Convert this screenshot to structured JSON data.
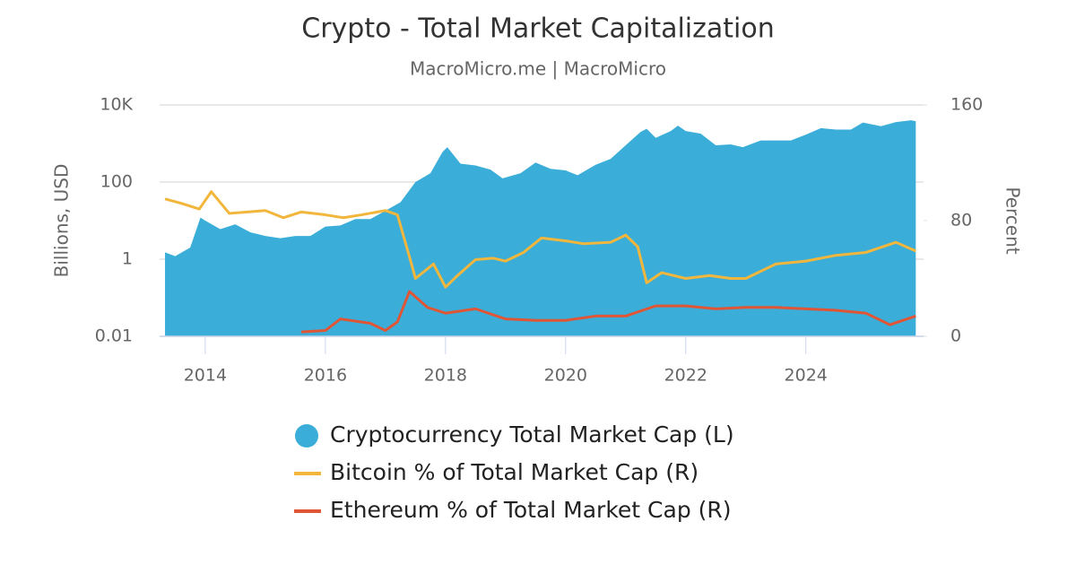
{
  "chart_data": {
    "type": "area-line",
    "title": "Crypto - Total Market Capitalization",
    "subtitle": "MacroMicro.me | MacroMicro",
    "y_label": "Billions, USD",
    "y2_label": "Percent",
    "xlim": [
      2013.24,
      2025.96
    ],
    "xticks": [
      2014,
      2016,
      2018,
      2020,
      2022,
      2024
    ],
    "ylim": [
      0.01,
      10000
    ],
    "y_log": true,
    "yticks": [
      0.01,
      1,
      100,
      {
        "value": 10000,
        "label": "10K"
      }
    ],
    "y2lim": [
      0,
      160
    ],
    "y2ticks": [
      0,
      80,
      160
    ],
    "grid": true,
    "series": [
      {
        "name": "Cryptocurrency Total Market Cap (L)",
        "color": "#3aaed8",
        "kind": "area",
        "x": [
          2013.33,
          2013.5,
          2013.75,
          2013.92,
          2014.0,
          2014.25,
          2014.5,
          2014.75,
          2015.0,
          2015.25,
          2015.5,
          2015.75,
          2016.0,
          2016.25,
          2016.5,
          2016.75,
          2017.0,
          2017.25,
          2017.5,
          2017.75,
          2017.95,
          2018.03,
          2018.25,
          2018.5,
          2018.75,
          2018.95,
          2019.25,
          2019.5,
          2019.75,
          2020.0,
          2020.2,
          2020.5,
          2020.75,
          2021.0,
          2021.25,
          2021.35,
          2021.5,
          2021.75,
          2021.87,
          2022.0,
          2022.25,
          2022.5,
          2022.75,
          2022.95,
          2023.25,
          2023.5,
          2023.75,
          2024.0,
          2024.25,
          2024.5,
          2024.75,
          2024.95,
          2025.25,
          2025.5,
          2025.75,
          2025.83
        ],
        "values": [
          1.5,
          1.2,
          2,
          12,
          10,
          6,
          8,
          5,
          4,
          3.5,
          4,
          4,
          7,
          7.5,
          11,
          11,
          18,
          30,
          100,
          170,
          600,
          800,
          300,
          270,
          210,
          125,
          170,
          320,
          220,
          200,
          150,
          280,
          400,
          900,
          2000,
          2400,
          1400,
          2100,
          2900,
          2100,
          1800,
          900,
          950,
          800,
          1200,
          1200,
          1200,
          1700,
          2500,
          2300,
          2300,
          3500,
          2800,
          3600,
          4000,
          3800
        ]
      },
      {
        "name": "Bitcoin % of Total Market Cap (R)",
        "color": "#f2b63c",
        "kind": "line",
        "axis": "y2",
        "x": [
          2013.33,
          2013.6,
          2013.9,
          2014.1,
          2014.4,
          2014.7,
          2015.0,
          2015.3,
          2015.6,
          2016.0,
          2016.3,
          2016.6,
          2017.0,
          2017.2,
          2017.4,
          2017.5,
          2017.8,
          2018.0,
          2018.2,
          2018.5,
          2018.8,
          2019.0,
          2019.3,
          2019.6,
          2020.0,
          2020.3,
          2020.75,
          2021.0,
          2021.2,
          2021.35,
          2021.6,
          2022.0,
          2022.4,
          2022.75,
          2023.0,
          2023.5,
          2024.0,
          2024.5,
          2025.0,
          2025.5,
          2025.83
        ],
        "values": [
          95,
          92,
          88,
          100,
          85,
          86,
          87,
          82,
          86,
          84,
          82,
          84,
          87,
          84,
          55,
          40,
          50,
          34,
          42,
          53,
          54,
          52,
          58,
          68,
          66,
          64,
          65,
          70,
          62,
          37,
          44,
          40,
          42,
          40,
          40,
          50,
          52,
          56,
          58,
          65,
          59
        ]
      },
      {
        "name": "Ethereum % of Total Market Cap (R)",
        "color": "#e05535",
        "kind": "line",
        "axis": "y2",
        "x": [
          2015.6,
          2016.0,
          2016.25,
          2016.75,
          2017.0,
          2017.2,
          2017.4,
          2017.7,
          2018.0,
          2018.5,
          2019.0,
          2019.5,
          2020.0,
          2020.5,
          2021.0,
          2021.5,
          2022.0,
          2022.5,
          2023.0,
          2023.5,
          2024.0,
          2024.5,
          2025.0,
          2025.4,
          2025.83
        ],
        "values": [
          3,
          4,
          12,
          9,
          4,
          10,
          31,
          20,
          16,
          19,
          12,
          11,
          11,
          14,
          14,
          21,
          21,
          19,
          20,
          20,
          19,
          18,
          16,
          8,
          14
        ]
      }
    ],
    "legend": "bottom"
  }
}
